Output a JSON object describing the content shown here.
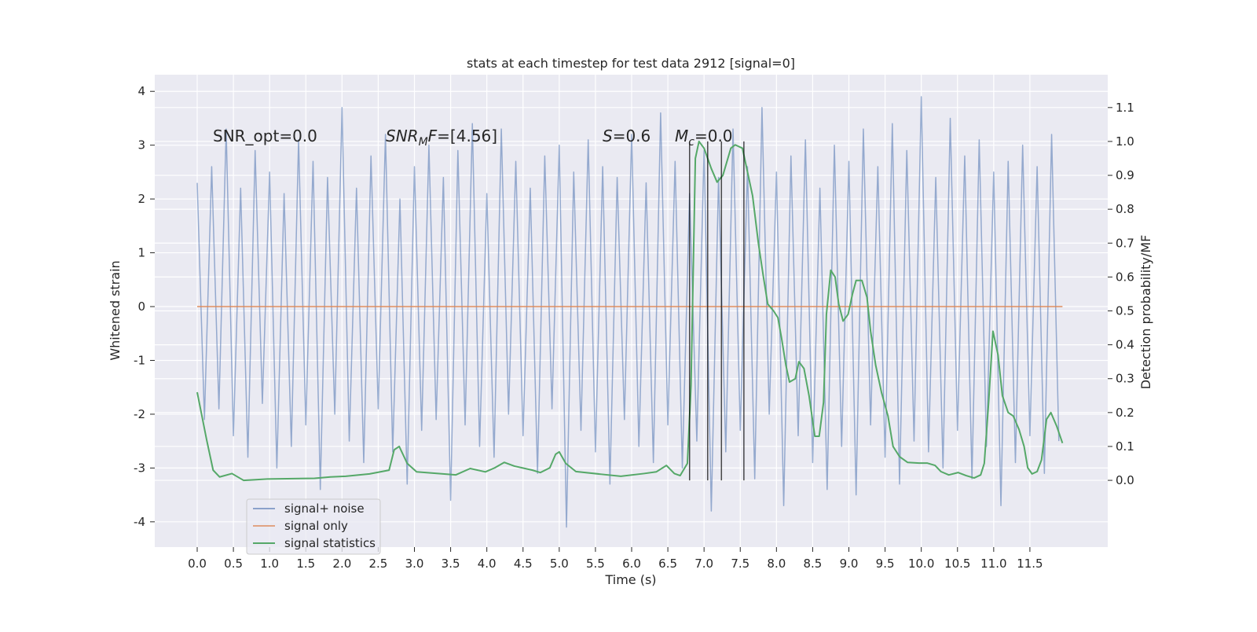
{
  "chart_data": {
    "type": "line",
    "title": "stats at each timestep for test data 2912 [signal=0]",
    "xlabel": "Time (s)",
    "ylabel": "Whitened strain",
    "y2label": "Detection probability/MF",
    "xlim": [
      -0.586,
      12.575
    ],
    "ylim": [
      -4.47,
      4.31
    ],
    "y2lim": [
      -0.197,
      1.197
    ],
    "xticks": [
      {
        "value": 0,
        "label": "0.0"
      },
      0.5,
      {
        "value": 1,
        "label": "1.0"
      },
      1.5,
      {
        "value": 2,
        "label": "2.0"
      },
      2.5,
      {
        "value": 3,
        "label": "3.0"
      },
      3.5,
      {
        "value": 4,
        "label": "4.0"
      },
      4.5,
      {
        "value": 5,
        "label": "5.0"
      },
      5.5,
      {
        "value": 6,
        "label": "6.0"
      },
      6.5,
      {
        "value": 7,
        "label": "7.0"
      },
      7.5,
      {
        "value": 8,
        "label": "8.0"
      },
      8.5,
      {
        "value": 9,
        "label": "9.0"
      },
      9.5,
      {
        "value": 10,
        "label": "10.0"
      },
      10.5,
      {
        "value": 11,
        "label": "11.0"
      },
      11.5
    ],
    "yticks": [
      -4,
      -3,
      -2,
      -1,
      0,
      1,
      2,
      3,
      4
    ],
    "y2ticks": [
      {
        "value": 0,
        "label": "0.0"
      },
      0.1,
      0.2,
      0.3,
      0.4,
      0.5,
      0.6,
      0.7,
      0.8,
      0.9,
      {
        "value": 1,
        "label": "1.0"
      },
      1.1
    ],
    "grid": true,
    "legend": "lower left",
    "series": [
      {
        "name": "signal+ noise",
        "color": "#4c72b0",
        "axis": "y",
        "x": [
          0,
          0.1,
          0.2,
          0.3,
          0.4,
          0.5,
          0.6,
          0.7,
          0.8,
          0.9,
          1,
          1.1,
          1.2,
          1.3,
          1.4,
          1.5,
          1.6,
          1.7,
          1.8,
          1.9,
          2,
          2.1,
          2.2,
          2.3,
          2.4,
          2.5,
          2.6,
          2.7,
          2.8,
          2.9,
          3,
          3.1,
          3.2,
          3.3,
          3.4,
          3.5,
          3.6,
          3.7,
          3.8,
          3.9,
          4,
          4.1,
          4.2,
          4.3,
          4.4,
          4.5,
          4.6,
          4.7,
          4.8,
          4.9,
          5,
          5.1,
          5.2,
          5.3,
          5.4,
          5.5,
          5.6,
          5.7,
          5.8,
          5.9,
          6,
          6.1,
          6.2,
          6.3,
          6.4,
          6.5,
          6.6,
          6.7,
          6.8,
          6.9,
          7,
          7.1,
          7.2,
          7.3,
          7.4,
          7.5,
          7.6,
          7.7,
          7.8,
          7.9,
          8,
          8.1,
          8.2,
          8.3,
          8.4,
          8.5,
          8.6,
          8.7,
          8.8,
          8.9,
          9,
          9.1,
          9.2,
          9.3,
          9.4,
          9.5,
          9.6,
          9.7,
          9.8,
          9.9,
          10,
          10.1,
          10.2,
          10.3,
          10.4,
          10.5,
          10.6,
          10.7,
          10.8,
          10.9,
          11,
          11.1,
          11.2,
          11.3,
          11.4,
          11.5,
          11.6,
          11.7,
          11.8,
          11.9
        ],
        "values": [
          2.3,
          -2.1,
          2.6,
          -1.9,
          3.3,
          -2.4,
          2.2,
          -2.8,
          2.9,
          -1.8,
          2.5,
          -3.0,
          2.1,
          -2.6,
          3.1,
          -2.2,
          2.7,
          -3.4,
          2.4,
          -2.0,
          3.7,
          -2.5,
          2.2,
          -2.9,
          2.8,
          -1.9,
          3.2,
          -2.7,
          2.0,
          -3.3,
          2.6,
          -2.3,
          3.0,
          -2.1,
          2.4,
          -3.6,
          2.9,
          -2.2,
          3.4,
          -2.6,
          2.1,
          -2.8,
          3.3,
          -2.0,
          2.7,
          -2.4,
          2.2,
          -3.1,
          2.8,
          -1.9,
          3.0,
          -4.1,
          2.5,
          -2.3,
          3.1,
          -2.7,
          2.6,
          -3.3,
          2.4,
          -2.1,
          3.2,
          -2.6,
          2.3,
          -2.9,
          3.6,
          -2.2,
          2.7,
          -3.0,
          2.1,
          -2.5,
          2.9,
          -3.8,
          2.4,
          -2.7,
          3.3,
          -2.3,
          2.6,
          -3.2,
          3.7,
          -2.0,
          2.5,
          -3.7,
          2.8,
          -2.4,
          3.1,
          -2.9,
          2.2,
          -3.4,
          3.0,
          -2.6,
          2.7,
          -3.5,
          3.3,
          -2.2,
          2.6,
          -2.8,
          3.4,
          -3.3,
          2.9,
          -2.5,
          3.9,
          -2.7,
          2.4,
          -3.0,
          3.5,
          -2.3,
          2.8,
          -3.2,
          3.1,
          -2.6,
          2.5,
          -3.7,
          2.7,
          -2.9,
          3.0,
          -2.4,
          2.6,
          -3.1,
          3.2,
          -2.5
        ]
      },
      {
        "name": "signal only",
        "color": "#dd8452",
        "axis": "y",
        "x": [
          0,
          11.95
        ],
        "values": [
          0,
          0
        ]
      },
      {
        "name": "signal statistics",
        "color": "#55a868",
        "axis": "y2",
        "x": [
          0,
          0.13,
          0.22,
          0.31,
          0.48,
          0.64,
          0.97,
          1.62,
          1.84,
          2.05,
          2.38,
          2.65,
          2.72,
          2.79,
          2.9,
          3.03,
          3.57,
          3.77,
          3.98,
          4.11,
          4.24,
          4.38,
          4.63,
          4.74,
          4.87,
          4.95,
          5.0,
          5.09,
          5.23,
          5.58,
          5.85,
          6.17,
          6.34,
          6.48,
          6.59,
          6.67,
          6.77,
          6.82,
          6.88,
          6.93,
          7.0,
          7.1,
          7.18,
          7.26,
          7.37,
          7.43,
          7.53,
          7.6,
          7.67,
          7.75,
          7.82,
          7.88,
          7.96,
          8.02,
          8.07,
          8.13,
          8.18,
          8.26,
          8.31,
          8.38,
          8.45,
          8.53,
          8.59,
          8.65,
          8.69,
          8.75,
          8.81,
          8.86,
          8.92,
          8.99,
          9.05,
          9.1,
          9.18,
          9.25,
          9.3,
          9.37,
          9.45,
          9.54,
          9.61,
          9.7,
          9.81,
          9.97,
          10.08,
          10.19,
          10.27,
          10.38,
          10.51,
          10.62,
          10.73,
          10.82,
          10.87,
          10.93,
          10.99,
          11.06,
          11.12,
          11.2,
          11.27,
          11.35,
          11.42,
          11.47,
          11.53,
          11.6,
          11.66,
          11.73,
          11.79,
          11.87,
          11.95
        ],
        "values": [
          0.26,
          0.12,
          0.03,
          0.01,
          0.02,
          0.0,
          0.004,
          0.006,
          0.01,
          0.012,
          0.019,
          0.03,
          0.09,
          0.1,
          0.05,
          0.025,
          0.016,
          0.035,
          0.025,
          0.037,
          0.053,
          0.042,
          0.03,
          0.023,
          0.037,
          0.077,
          0.084,
          0.05,
          0.026,
          0.018,
          0.012,
          0.02,
          0.025,
          0.044,
          0.02,
          0.014,
          0.05,
          0.28,
          0.95,
          1.0,
          0.98,
          0.92,
          0.88,
          0.9,
          0.98,
          0.99,
          0.98,
          0.91,
          0.84,
          0.7,
          0.6,
          0.52,
          0.5,
          0.48,
          0.42,
          0.34,
          0.29,
          0.3,
          0.35,
          0.33,
          0.25,
          0.13,
          0.13,
          0.23,
          0.49,
          0.62,
          0.6,
          0.52,
          0.47,
          0.49,
          0.55,
          0.59,
          0.59,
          0.54,
          0.44,
          0.34,
          0.26,
          0.19,
          0.1,
          0.07,
          0.053,
          0.051,
          0.051,
          0.044,
          0.026,
          0.016,
          0.023,
          0.014,
          0.007,
          0.016,
          0.05,
          0.23,
          0.44,
          0.37,
          0.25,
          0.2,
          0.19,
          0.15,
          0.1,
          0.037,
          0.019,
          0.026,
          0.06,
          0.18,
          0.2,
          0.16,
          0.11
        ]
      }
    ],
    "vlines": {
      "x": [
        6.8,
        7.05,
        7.24,
        7.55
      ],
      "ymin": 0,
      "ymax": 1.0,
      "axis": "y2",
      "color": "#000000"
    },
    "annotations": [
      [
        {
          "text": "SNR_opt=0.0"
        }
      ],
      [
        {
          "text": "SNR",
          "italic": true
        },
        {
          "text": "M",
          "italic": true,
          "sub": true
        },
        {
          "text": "F",
          "italic": true
        },
        {
          "text": "=[4.56]"
        }
      ],
      [
        {
          "text": "S",
          "italic": true
        },
        {
          "text": "=0.6"
        }
      ],
      [
        {
          "text": "M",
          "italic": true
        },
        {
          "text": "c",
          "italic": true,
          "sub": true
        },
        {
          "text": "=0.0"
        }
      ]
    ]
  }
}
